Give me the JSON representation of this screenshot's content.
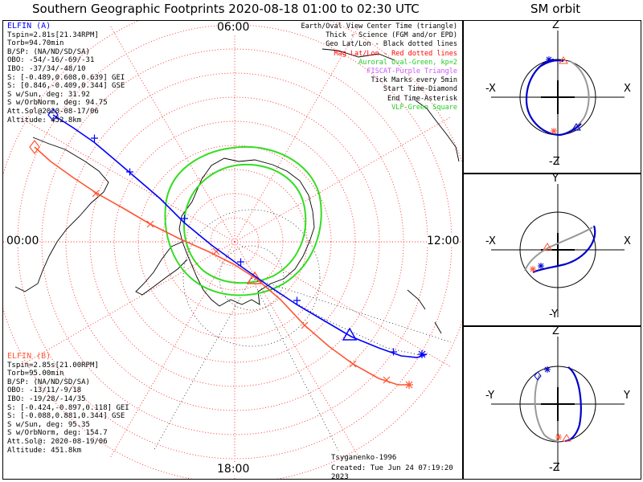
{
  "title": "Southern Geographic Footprints 2020-08-18 01:00 to 02:30 UTC",
  "sm_title": "SM orbit",
  "map": {
    "hours": [
      "06:00",
      "00:00",
      "12:00",
      "18:00"
    ],
    "legend": [
      {
        "text": "Earth/Oval View Center Time (triangle)",
        "color": "#000000"
      },
      {
        "text": "Thick - Science (FGM and/or EPD)",
        "color": "#000000"
      },
      {
        "text": "Geo Lat/Lon - Black dotted lines",
        "color": "#000000"
      },
      {
        "text": "Mag Lat/Lon - Red dotted lines",
        "color": "#ff0000"
      },
      {
        "text": "Auroral Oval-Green, kp=2",
        "color": "#22cc22"
      },
      {
        "text": "FISCAT-Purple Triangle",
        "color": "#cc55ff"
      },
      {
        "text": "Tick Marks every 5min",
        "color": "#000000"
      },
      {
        "text": "Start Time-Diamond",
        "color": "#000000"
      },
      {
        "text": "End Time-Asterisk",
        "color": "#000000"
      },
      {
        "text": "VLF-Green Square",
        "color": "#22cc22"
      }
    ],
    "elfin_a": {
      "name": "ELFIN (A)",
      "color": "#0000ff",
      "lines": [
        "Tspin=2.81s[21.34RPM]",
        "Torb=94.70min",
        "B/SP: (NA/ND/SD/SA)",
        "OBO: -54/-16/-69/-31",
        "IBO: -37/34/-48/10",
        "S: [-0.489,0.608,0.639] GEI",
        "S: [0.846,-0.409,0.344] GSE",
        "S w/Sun, deg: 31.92",
        "S w/OrbNorm, deg: 94.75",
        "Att.Sol@2020-08-17/06",
        "Altitude: 452.8km"
      ]
    },
    "elfin_b": {
      "name": "ELFIN (B)",
      "color": "#ff5533",
      "lines": [
        "Tspin=2.85s[21.00RPM]",
        "Torb=95.00min",
        "B/SP: (NA/ND/SD/SA)",
        "OBO: -13/11/-9/18",
        "IBO: -19/28/-14/35",
        "S: [-0.424,-0.897,0.118] GEI",
        "S: [-0.088,0.881,0.344] GSE",
        "S w/Sun, deg: 95.35",
        "S w/OrbNorm, deg: 154.7",
        "Att.Sol@: 2020-08-19/06",
        "Altitude: 451.8km"
      ]
    },
    "credit": "Tsyganenko-1996",
    "created": "Created: Tue Jun 24 07:19:20 2023"
  },
  "sm_panels": [
    {
      "top": "Z",
      "bottom": "-Z",
      "left": "-X",
      "right": "X"
    },
    {
      "top": "Y",
      "bottom": "-Y",
      "left": "-X",
      "right": "X"
    },
    {
      "top": "Z",
      "bottom": "-Z",
      "left": "-Y",
      "right": "Y"
    }
  ]
}
